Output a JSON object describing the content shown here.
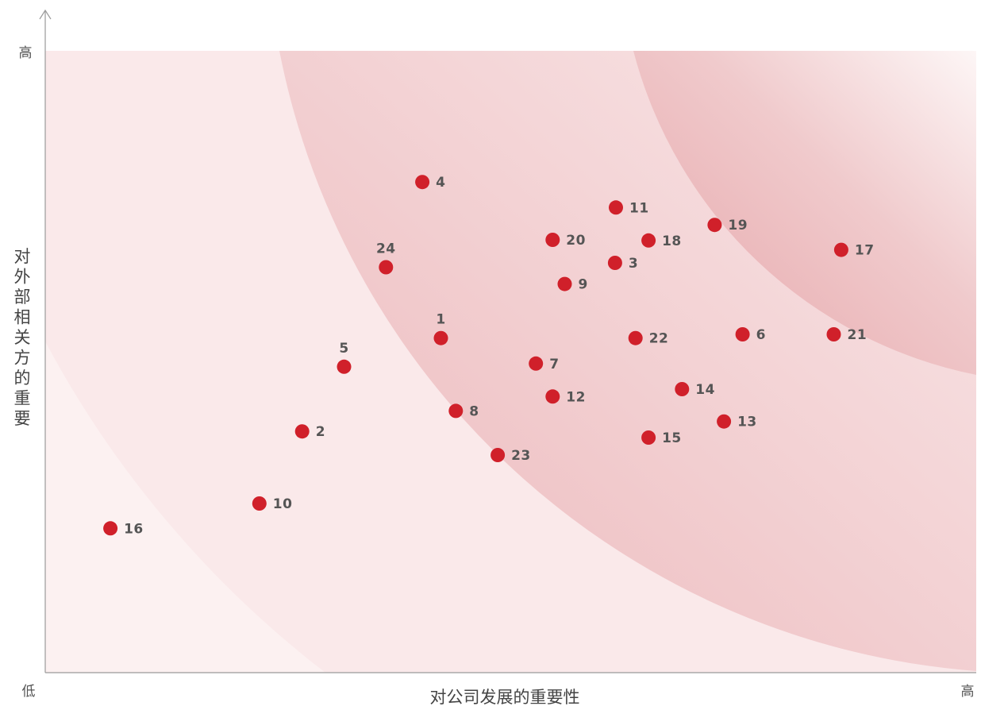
{
  "chart_data": {
    "type": "scatter",
    "title": "",
    "xlabel": "对公司发展的重要性",
    "ylabel": "对外部相关方的重要",
    "x_low_label": "低",
    "x_high_label": "高",
    "y_high_label": "高",
    "xlim": [
      0,
      100
    ],
    "ylim": [
      0,
      100
    ],
    "grid": false,
    "legend": "none",
    "colors": {
      "point": "#d0202a",
      "zone1": "#fbeded",
      "zone2": "#f6dadc",
      "zone3": "#efc0c3",
      "zone4": "#e8a6aa"
    },
    "points": [
      {
        "label": "1",
        "x": 42.5,
        "y": 53.8,
        "label_pos": "top"
      },
      {
        "label": "2",
        "x": 27.6,
        "y": 38.8,
        "label_pos": "right"
      },
      {
        "label": "3",
        "x": 61.2,
        "y": 65.9,
        "label_pos": "right"
      },
      {
        "label": "4",
        "x": 40.5,
        "y": 78.9,
        "label_pos": "right"
      },
      {
        "label": "5",
        "x": 32.1,
        "y": 49.2,
        "label_pos": "top"
      },
      {
        "label": "6",
        "x": 74.9,
        "y": 54.4,
        "label_pos": "right"
      },
      {
        "label": "7",
        "x": 52.7,
        "y": 49.7,
        "label_pos": "right"
      },
      {
        "label": "8",
        "x": 44.1,
        "y": 42.1,
        "label_pos": "right"
      },
      {
        "label": "9",
        "x": 55.8,
        "y": 62.5,
        "label_pos": "right"
      },
      {
        "label": "10",
        "x": 23.0,
        "y": 27.2,
        "label_pos": "right"
      },
      {
        "label": "11",
        "x": 61.3,
        "y": 74.8,
        "label_pos": "right"
      },
      {
        "label": "12",
        "x": 54.5,
        "y": 44.4,
        "label_pos": "right"
      },
      {
        "label": "13",
        "x": 72.9,
        "y": 40.4,
        "label_pos": "right"
      },
      {
        "label": "14",
        "x": 68.4,
        "y": 45.6,
        "label_pos": "right"
      },
      {
        "label": "15",
        "x": 64.8,
        "y": 37.8,
        "label_pos": "right"
      },
      {
        "label": "16",
        "x": 7.0,
        "y": 23.2,
        "label_pos": "right"
      },
      {
        "label": "17",
        "x": 85.5,
        "y": 68.0,
        "label_pos": "right"
      },
      {
        "label": "18",
        "x": 64.8,
        "y": 69.5,
        "label_pos": "right"
      },
      {
        "label": "19",
        "x": 71.9,
        "y": 72.0,
        "label_pos": "right"
      },
      {
        "label": "20",
        "x": 54.5,
        "y": 69.6,
        "label_pos": "right"
      },
      {
        "label": "21",
        "x": 84.7,
        "y": 54.4,
        "label_pos": "right"
      },
      {
        "label": "22",
        "x": 63.4,
        "y": 53.8,
        "label_pos": "right"
      },
      {
        "label": "23",
        "x": 48.6,
        "y": 35.0,
        "label_pos": "right"
      },
      {
        "label": "24",
        "x": 36.6,
        "y": 65.2,
        "label_pos": "top"
      }
    ]
  }
}
